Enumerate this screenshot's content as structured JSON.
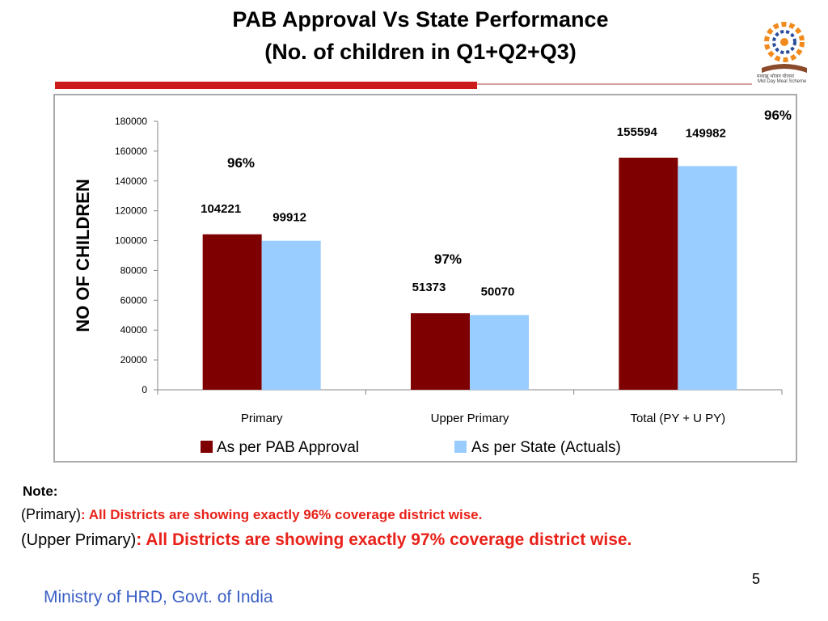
{
  "slide": {
    "title_line1": "PAB Approval  Vs State Performance",
    "title_line2": "(No. of children in Q1+Q2+Q3)",
    "logo_caption_line1": "मध्याह्न भोजन योजना",
    "logo_caption_line2": "Mid Day Meal Scheme",
    "note_title": "Note:",
    "note1_prefix": "(Primary)",
    "note1_colon": ":",
    "note1_text": " All Districts are showing exactly 96% coverage district wise.",
    "note2_prefix": "(Upper Primary)",
    "note2_colon": ":",
    "note2_text": " All Districts are showing exactly 97% coverage district wise.",
    "page_number": "5",
    "footer": "Ministry of HRD, Govt. of India",
    "colors": {
      "title_rule": "#cc1b1b",
      "note_highlight": "#e8221a",
      "footer_text": "#3a5fc4"
    }
  },
  "chart_data": {
    "type": "bar",
    "categories": [
      "Primary",
      "Upper Primary",
      "Total (PY + U PY)"
    ],
    "series": [
      {
        "name": "As per PAB Approval",
        "values": [
          104221,
          51373,
          155594
        ],
        "color": "#7f0000"
      },
      {
        "name": "As per State (Actuals)",
        "values": [
          99912,
          50070,
          149982
        ],
        "color": "#99ccff"
      }
    ],
    "data_labels": [
      [
        "104221",
        "51373",
        "155594"
      ],
      [
        "99912",
        "50070",
        "149982"
      ]
    ],
    "percent_labels": [
      "96%",
      "97%",
      "96%"
    ],
    "ylabel": "NO OF CHILDREN",
    "ylim": [
      0,
      180000
    ],
    "yticks": [
      "0",
      "20000",
      "40000",
      "60000",
      "80000",
      "100000",
      "120000",
      "140000",
      "160000",
      "180000"
    ],
    "grid": false,
    "legend_position": "bottom"
  }
}
